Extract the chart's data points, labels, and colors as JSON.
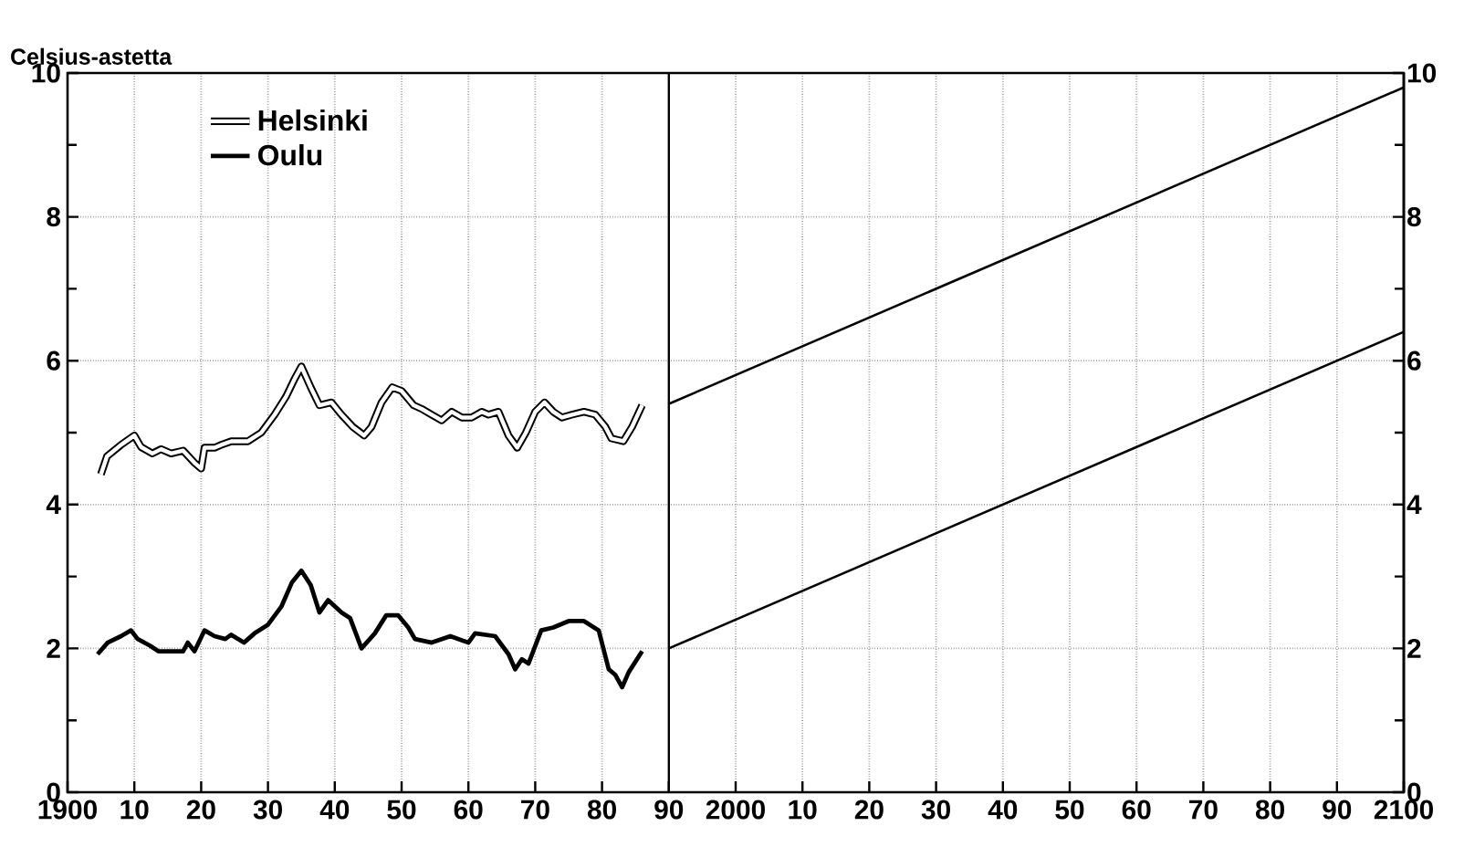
{
  "chart_data": {
    "type": "line",
    "ylabel": "Celsius-astetta",
    "xlim": [
      1900,
      2100
    ],
    "xticks": [
      {
        "value": 1900,
        "label": "1900"
      },
      {
        "value": 1910,
        "label": "10"
      },
      {
        "value": 1920,
        "label": "20"
      },
      {
        "value": 1930,
        "label": "30"
      },
      {
        "value": 1940,
        "label": "40"
      },
      {
        "value": 1950,
        "label": "50"
      },
      {
        "value": 1960,
        "label": "60"
      },
      {
        "value": 1970,
        "label": "70"
      },
      {
        "value": 1980,
        "label": "80"
      },
      {
        "value": 1990,
        "label": "90"
      },
      {
        "value": 2000,
        "label": "2000"
      },
      {
        "value": 2010,
        "label": "10"
      },
      {
        "value": 2020,
        "label": "20"
      },
      {
        "value": 2030,
        "label": "30"
      },
      {
        "value": 2040,
        "label": "40"
      },
      {
        "value": 2050,
        "label": "50"
      },
      {
        "value": 2060,
        "label": "60"
      },
      {
        "value": 2070,
        "label": "70"
      },
      {
        "value": 2080,
        "label": "80"
      },
      {
        "value": 2090,
        "label": "90"
      },
      {
        "value": 2100,
        "label": "2100"
      }
    ],
    "ylim": [
      0,
      10
    ],
    "yticks": [
      0,
      {
        "value": 1,
        "label": null
      },
      2,
      {
        "value": 3,
        "label": null
      },
      4,
      {
        "value": 5,
        "label": null
      },
      6,
      {
        "value": 7,
        "label": null
      },
      8,
      {
        "value": 9,
        "label": null
      },
      10
    ],
    "y2lim": [
      0,
      10
    ],
    "y2ticks": [
      0,
      {
        "value": 1,
        "label": null
      },
      2,
      {
        "value": 3,
        "label": null
      },
      4,
      {
        "value": 5,
        "label": null
      },
      6,
      {
        "value": 7,
        "label": null
      },
      8,
      {
        "value": 9,
        "label": null
      },
      10
    ],
    "grid": true,
    "legend": "top left",
    "marker": "none",
    "line_style": "solid",
    "ref_lines": [
      {
        "axis": "x",
        "value": 1990,
        "color": "#000000"
      }
    ],
    "series": [
      {
        "name": "Helsinki",
        "color": "#000000",
        "x": [
          1905,
          1905.9,
          1908,
          1910,
          1911,
          1912.7,
          1914,
          1915.5,
          1917.3,
          1919,
          1920,
          1920.5,
          1922,
          1923,
          1924.5,
          1927,
          1929,
          1931,
          1932.7,
          1934,
          1935,
          1936.4,
          1937.7,
          1939.5,
          1941,
          1942.7,
          1944.4,
          1945.5,
          1947,
          1948.6,
          1950,
          1951.8,
          1953,
          1954.5,
          1956,
          1957.5,
          1959,
          1960.5,
          1962,
          1963,
          1964.5,
          1966,
          1967.3,
          1968.6,
          1970,
          1971.4,
          1972.7,
          1974,
          1975.5,
          1977.3,
          1979,
          1980.5,
          1981.4,
          1983.2,
          1984.5,
          1986
        ],
        "values": [
          4.42,
          4.67,
          4.83,
          4.96,
          4.8,
          4.71,
          4.77,
          4.71,
          4.75,
          4.58,
          4.5,
          4.79,
          4.79,
          4.83,
          4.88,
          4.88,
          5.0,
          5.25,
          5.5,
          5.75,
          5.92,
          5.63,
          5.38,
          5.42,
          5.25,
          5.08,
          4.96,
          5.08,
          5.42,
          5.63,
          5.58,
          5.38,
          5.33,
          5.25,
          5.17,
          5.29,
          5.21,
          5.21,
          5.29,
          5.25,
          5.29,
          4.96,
          4.79,
          5.0,
          5.29,
          5.42,
          5.29,
          5.21,
          5.25,
          5.29,
          5.25,
          5.08,
          4.92,
          4.88,
          5.08,
          5.38
        ]
      },
      {
        "name": "Oulu",
        "color": "#000000",
        "x": [
          1904.5,
          1906,
          1908,
          1909.5,
          1910.5,
          1912.3,
          1913.6,
          1917.3,
          1918,
          1919,
          1920.5,
          1922,
          1923.6,
          1924.5,
          1926.4,
          1928,
          1930,
          1932,
          1933.6,
          1935,
          1936.4,
          1937.7,
          1939,
          1941,
          1942.3,
          1944,
          1946,
          1947.7,
          1949.5,
          1951,
          1952,
          1954.5,
          1957.3,
          1960,
          1961,
          1964,
          1966,
          1967,
          1968,
          1969,
          1970.9,
          1972.7,
          1975,
          1977.3,
          1979.5,
          1981,
          1982,
          1983,
          1984,
          1986
        ],
        "values": [
          1.92,
          2.08,
          2.17,
          2.25,
          2.13,
          2.04,
          1.96,
          1.96,
          2.08,
          1.96,
          2.25,
          2.17,
          2.13,
          2.19,
          2.08,
          2.21,
          2.33,
          2.58,
          2.92,
          3.08,
          2.88,
          2.5,
          2.67,
          2.5,
          2.42,
          2.0,
          2.21,
          2.46,
          2.46,
          2.29,
          2.13,
          2.08,
          2.17,
          2.08,
          2.21,
          2.17,
          1.92,
          1.71,
          1.85,
          1.79,
          2.25,
          2.29,
          2.38,
          2.38,
          2.25,
          1.71,
          1.63,
          1.46,
          1.67,
          1.96
        ]
      },
      {
        "color": "#000000",
        "x": [
          1990,
          2100
        ],
        "values": [
          5.4,
          9.8
        ]
      },
      {
        "color": "#000000",
        "x": [
          1990,
          2100
        ],
        "values": [
          2.0,
          6.4
        ]
      }
    ]
  }
}
